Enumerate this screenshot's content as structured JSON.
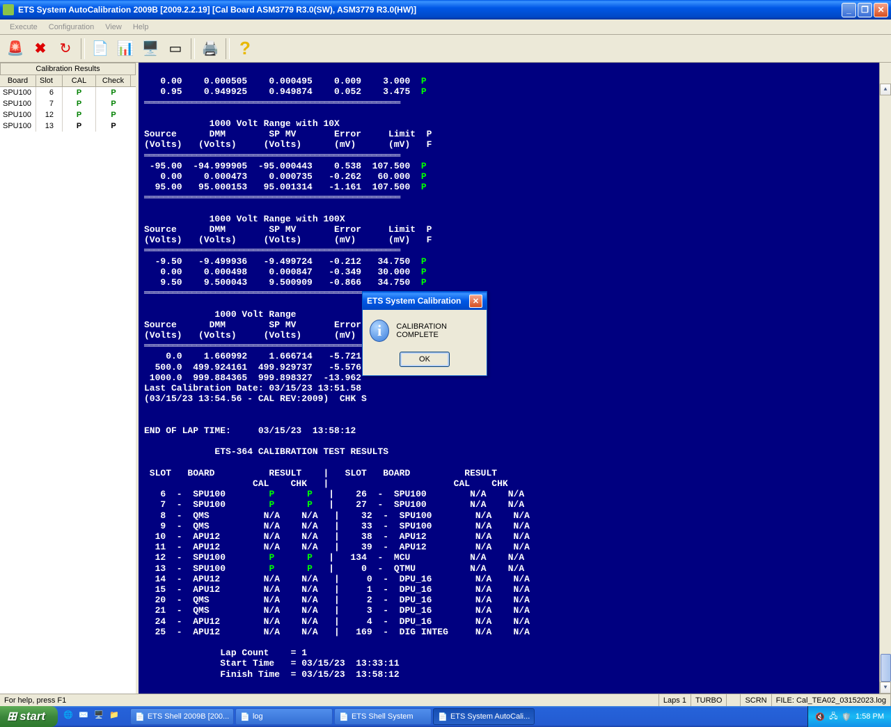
{
  "window": {
    "title": "ETS System AutoCalibration 2009B [2009.2.2.19]  [Cal Board ASM3779 R3.0(SW), ASM3779 R3.0(HW)]"
  },
  "menu": {
    "items": [
      "Execute",
      "Configuration",
      "View",
      "Help"
    ]
  },
  "sidebar": {
    "title": "Calibration Results",
    "headers": [
      "Board",
      "Slot",
      "CAL",
      "Check"
    ],
    "rows": [
      {
        "board": "SPU100",
        "slot": "6",
        "cal": "P",
        "check": "P",
        "black": false
      },
      {
        "board": "SPU100",
        "slot": "7",
        "cal": "P",
        "check": "P",
        "black": false
      },
      {
        "board": "SPU100",
        "slot": "12",
        "cal": "P",
        "check": "P",
        "black": false
      },
      {
        "board": "SPU100",
        "slot": "13",
        "cal": "P",
        "check": "P",
        "black": true
      }
    ]
  },
  "terminal": {
    "top_rows": [
      [
        "   0.00",
        "   0.000505",
        "   0.000495",
        "   0.009",
        "   3.000",
        " P"
      ],
      [
        "   0.95",
        "   0.949925",
        "   0.949874",
        "   0.052",
        "   3.475",
        " P"
      ]
    ],
    "sec1_title": "            1000 Volt Range with 10X",
    "headers": [
      "Source      DMM        SP MV       Error     Limit  P",
      "(Volts)   (Volts)     (Volts)      (mV)      (mV)   F"
    ],
    "sec1_rows": [
      [
        " -95.00",
        " -94.999905",
        " -95.000443",
        "   0.538",
        " 107.500",
        " P"
      ],
      [
        "   0.00",
        "   0.000473",
        "   0.000735",
        "  -0.262",
        "  60.000",
        " P"
      ],
      [
        "  95.00",
        "  95.000153",
        "  95.001314",
        "  -1.161",
        " 107.500",
        " P"
      ]
    ],
    "sec2_title": "            1000 Volt Range with 100X",
    "sec2_rows": [
      [
        "  -9.50",
        "  -9.499936",
        "  -9.499724",
        "  -0.212",
        "  34.750",
        " P"
      ],
      [
        "   0.00",
        "   0.000498",
        "   0.000847",
        "  -0.349",
        "  30.000",
        " P"
      ],
      [
        "   9.50",
        "   9.500043",
        "   9.500909",
        "  -0.866",
        "  34.750",
        " P"
      ]
    ],
    "sec3_title": "             1000 Volt Range",
    "sec3_rows": [
      [
        "    0.0",
        "   1.660992",
        "   1.666714",
        "  -5.721"
      ],
      [
        "  500.0",
        " 499.924161",
        " 499.929737",
        "  -5.576"
      ],
      [
        " 1000.0",
        " 999.884365",
        " 999.898327",
        " -13.962"
      ]
    ],
    "cal_date": "Last Calibration Date: 03/15/23 13:51.58",
    "cal_rev": "(03/15/23 13:54.56 - CAL REV:2009)  CHK S",
    "end_lap": "END OF LAP TIME:     03/15/23  13:58:12",
    "results_title": "             ETS-364 CALIBRATION TEST RESULTS",
    "results_header1": " SLOT   BOARD          RESULT    |   SLOT   BOARD          RESULT",
    "results_header2": "                    CAL    CHK   |                       CAL    CHK",
    "results": [
      {
        "l": "   6  -  SPU100        ",
        "lc": "P",
        "lk": "P",
        "r": "   |    26  -  SPU100        N/A    N/A",
        "green": true
      },
      {
        "l": "   7  -  SPU100        ",
        "lc": "P",
        "lk": "P",
        "r": "   |    27  -  SPU100        N/A    N/A",
        "green": true
      },
      {
        "l": "   8  -  QMS          N/A    N/A",
        "r": "   |    32  -  SPU100        N/A    N/A",
        "green": false
      },
      {
        "l": "   9  -  QMS          N/A    N/A",
        "r": "   |    33  -  SPU100        N/A    N/A",
        "green": false
      },
      {
        "l": "  10  -  APU12        N/A    N/A",
        "r": "   |    38  -  APU12         N/A    N/A",
        "green": false
      },
      {
        "l": "  11  -  APU12        N/A    N/A",
        "r": "   |    39  -  APU12         N/A    N/A",
        "green": false
      },
      {
        "l": "  12  -  SPU100        ",
        "lc": "P",
        "lk": "P",
        "r": "   |   134  -  MCU           N/A    N/A",
        "green": true
      },
      {
        "l": "  13  -  SPU100        ",
        "lc": "P",
        "lk": "P",
        "r": "   |     0  -  QTMU          N/A    N/A",
        "green": true
      },
      {
        "l": "  14  -  APU12        N/A    N/A",
        "r": "   |     0  -  DPU_16        N/A    N/A",
        "green": false
      },
      {
        "l": "  15  -  APU12        N/A    N/A",
        "r": "   |     1  -  DPU_16        N/A    N/A",
        "green": false
      },
      {
        "l": "  20  -  QMS          N/A    N/A",
        "r": "   |     2  -  DPU_16        N/A    N/A",
        "green": false
      },
      {
        "l": "  21  -  QMS          N/A    N/A",
        "r": "   |     3  -  DPU_16        N/A    N/A",
        "green": false
      },
      {
        "l": "  24  -  APU12        N/A    N/A",
        "r": "   |     4  -  DPU_16        N/A    N/A",
        "green": false
      },
      {
        "l": "  25  -  APU12        N/A    N/A",
        "r": "   |   169  -  DIG INTEG     N/A    N/A",
        "green": false
      }
    ],
    "lap_count": "              Lap Count    = 1",
    "start_time": "              Start Time   = 03/15/23  13:33:11",
    "finish_time": "              Finish Time  = 03/15/23  13:58:12"
  },
  "dialog": {
    "title": "ETS System Calibration",
    "message": "CALIBRATION COMPLETE",
    "ok": "OK"
  },
  "status": {
    "help": "For help, press F1",
    "laps": "Laps 1",
    "turbo": "TURBO",
    "scrn": "SCRN",
    "file": "FILE: Cal_TEA02_03152023.log"
  },
  "taskbar": {
    "start": "start",
    "tasks": [
      {
        "label": "ETS Shell 2009B [200...",
        "active": false
      },
      {
        "label": "log",
        "active": false
      },
      {
        "label": "ETS Shell System",
        "active": false
      },
      {
        "label": "ETS System AutoCali...",
        "active": true
      }
    ],
    "time": "1:58 PM"
  }
}
